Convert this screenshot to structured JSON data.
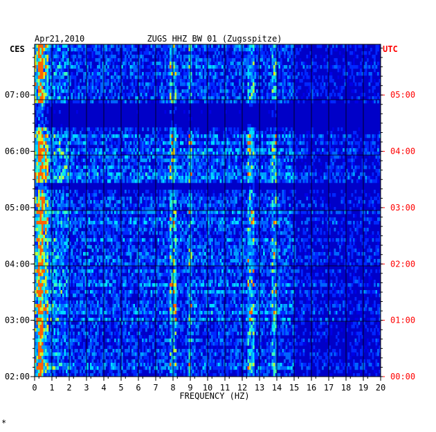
{
  "chart_data": {
    "type": "heatmap",
    "header": {
      "date": "Apr21,2010",
      "station": "ZUGS HHZ BW 01 (Zugsspitze)"
    },
    "left_timezone": "CES",
    "right_timezone": "UTC",
    "xlabel": "FREQUENCY (HZ)",
    "xlim": [
      0,
      20
    ],
    "x_ticks": [
      "0",
      "1",
      "2",
      "3",
      "4",
      "5",
      "6",
      "7",
      "8",
      "9",
      "10",
      "11",
      "12",
      "13",
      "14",
      "15",
      "16",
      "17",
      "18",
      "19",
      "20"
    ],
    "left_time_ticks": [
      "07:00",
      "06:00",
      "05:00",
      "04:00",
      "03:00",
      "02:00"
    ],
    "right_time_ticks": [
      "05:00",
      "04:00",
      "03:00",
      "02:00",
      "01:00",
      "00:00"
    ],
    "time_range_hours_local": [
      2.0,
      7.9
    ],
    "bright_frequency_bands_hz": [
      0.3,
      8.0,
      9.0,
      12.5,
      13.8
    ],
    "quiet_time_bands_local": [
      "06:25-06:50",
      "05:20-05:25"
    ],
    "colors": {
      "background": "#0000c8",
      "right_axis": "#ff0000",
      "left_axis": "#000000"
    },
    "corner_mark": "*"
  }
}
